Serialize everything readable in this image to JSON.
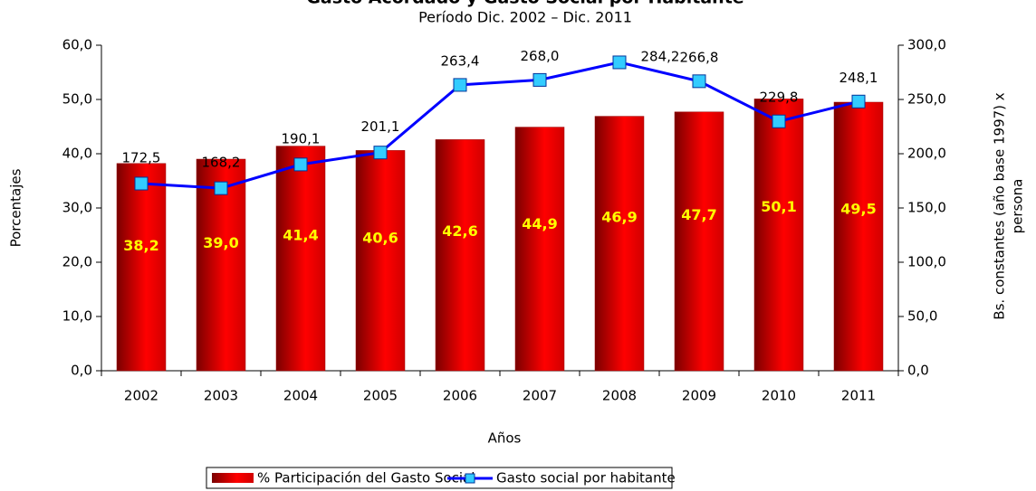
{
  "chart_data": {
    "type": "bar-line",
    "title": "Gasto Acordado y Gasto Social por Habitante",
    "subtitle": "Período Dic. 2002 – Dic. 2011",
    "x_label": "Años",
    "y_label": "Porcentajes",
    "y2_label": [
      "Bs. constantes (año base 1997) x",
      "persona"
    ],
    "categories": [
      "2002",
      "2003",
      "2004",
      "2005",
      "2006",
      "2007",
      "2008",
      "2009",
      "2010",
      "2011"
    ],
    "series": [
      {
        "name": "% Participación del Gasto Social",
        "type": "bar",
        "color": "#cc0000",
        "values": [
          38.2,
          39.0,
          41.4,
          40.6,
          42.6,
          44.9,
          46.9,
          47.7,
          50.1,
          49.5
        ],
        "value_labels": [
          "38,2",
          "39,0",
          "41,4",
          "40,6",
          "42,6",
          "44,9",
          "46,9",
          "47,7",
          "50,1",
          "49,5"
        ]
      },
      {
        "name": "Gasto social por habitante",
        "type": "line",
        "axis": "y2",
        "color": "#0000ff",
        "marker_color": "#33ccff",
        "values": [
          172.5,
          168.2,
          190.1,
          201.1,
          263.4,
          268.0,
          284.2,
          266.8,
          229.8,
          248.1
        ],
        "value_labels": [
          "172,5",
          "168,2",
          "190,1",
          "201,1",
          "263,4",
          "268,0",
          "284,2",
          "266,8",
          "229,8",
          "248,1"
        ]
      }
    ],
    "ylim": [
      0,
      60
    ],
    "yticks": [
      {
        "value": 0,
        "label": "0,0"
      },
      {
        "value": 10,
        "label": "10,0"
      },
      {
        "value": 20,
        "label": "20,0"
      },
      {
        "value": 30,
        "label": "30,0"
      },
      {
        "value": 40,
        "label": "40,0"
      },
      {
        "value": 50,
        "label": "50,0"
      },
      {
        "value": 60,
        "label": "60,0"
      }
    ],
    "y2lim": [
      0,
      300
    ],
    "y2ticks": [
      {
        "value": 0,
        "label": "0,0"
      },
      {
        "value": 50,
        "label": "50,0"
      },
      {
        "value": 100,
        "label": "100,0"
      },
      {
        "value": 150,
        "label": "150,0"
      },
      {
        "value": 200,
        "label": "200,0"
      },
      {
        "value": 250,
        "label": "250,0"
      },
      {
        "value": 300,
        "label": "300,0"
      }
    ],
    "legend": "bottom"
  }
}
